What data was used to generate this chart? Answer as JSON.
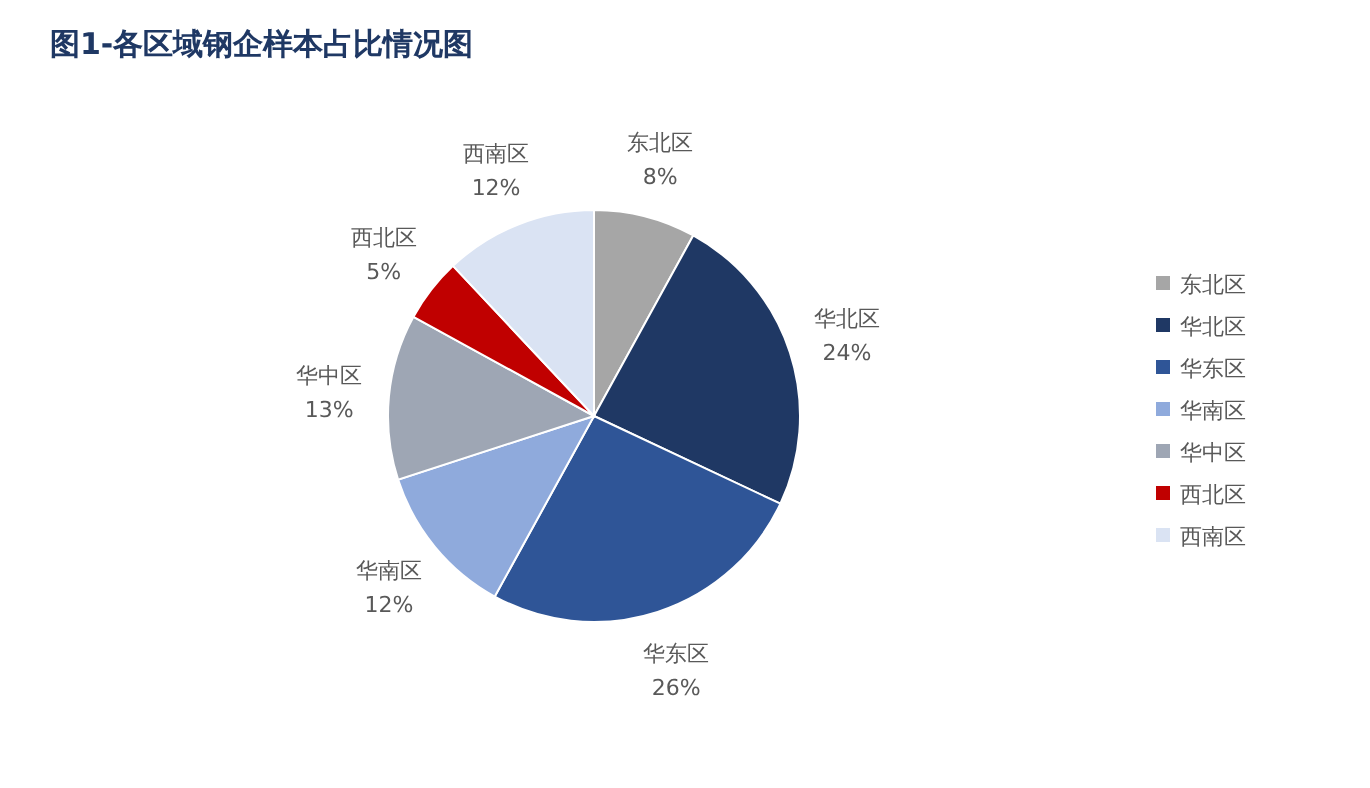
{
  "chart_data": {
    "type": "pie",
    "title": "图1-各区域钢企样本占比情况图",
    "categories": [
      "东北区",
      "华北区",
      "华东区",
      "华南区",
      "华中区",
      "西北区",
      "西南区"
    ],
    "values": [
      8,
      24,
      26,
      12,
      13,
      5,
      12
    ],
    "value_labels": [
      "8%",
      "24%",
      "26%",
      "12%",
      "13%",
      "5%",
      "12%"
    ],
    "colors": [
      "#a6a6a6",
      "#1f3864",
      "#2f5597",
      "#8faadc",
      "#9ea6b4",
      "#c00000",
      "#dae3f3"
    ],
    "legend": "right"
  }
}
